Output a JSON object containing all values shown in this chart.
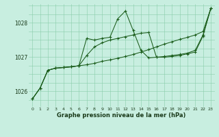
{
  "title": "Graphe pression niveau de la mer (hPa)",
  "bg_color": "#c8eee0",
  "grid_color": "#88ccaa",
  "line_color": "#1a5c1a",
  "x_labels": [
    "0",
    "1",
    "2",
    "3",
    "4",
    "5",
    "6",
    "7",
    "8",
    "9",
    "10",
    "11",
    "12",
    "13",
    "14",
    "15",
    "16",
    "17",
    "18",
    "19",
    "20",
    "21",
    "22",
    "23"
  ],
  "ylim": [
    1025.55,
    1028.55
  ],
  "yticks": [
    1026,
    1027,
    1028
  ],
  "series1_volatile": [
    1025.78,
    1026.1,
    1026.62,
    1026.68,
    1026.7,
    1026.72,
    1026.75,
    1027.55,
    1027.5,
    1027.55,
    1027.58,
    1028.12,
    1028.35,
    1027.78,
    1027.2,
    1026.98,
    1027.0,
    1027.0,
    1027.02,
    1027.05,
    1027.1,
    1027.15,
    1027.62,
    1028.42
  ],
  "series2_smooth": [
    1025.78,
    1026.1,
    1026.62,
    1026.68,
    1026.7,
    1026.72,
    1026.75,
    1026.78,
    1026.82,
    1026.88,
    1026.92,
    1026.97,
    1027.02,
    1027.08,
    1027.15,
    1027.22,
    1027.3,
    1027.38,
    1027.45,
    1027.52,
    1027.58,
    1027.65,
    1027.75,
    1028.42
  ],
  "series3_mid": [
    1025.78,
    1026.1,
    1026.62,
    1026.68,
    1026.7,
    1026.72,
    1026.75,
    1027.05,
    1027.3,
    1027.42,
    1027.5,
    1027.55,
    1027.6,
    1027.65,
    1027.7,
    1027.72,
    1027.0,
    1027.02,
    1027.05,
    1027.08,
    1027.12,
    1027.2,
    1027.65,
    1028.42
  ]
}
